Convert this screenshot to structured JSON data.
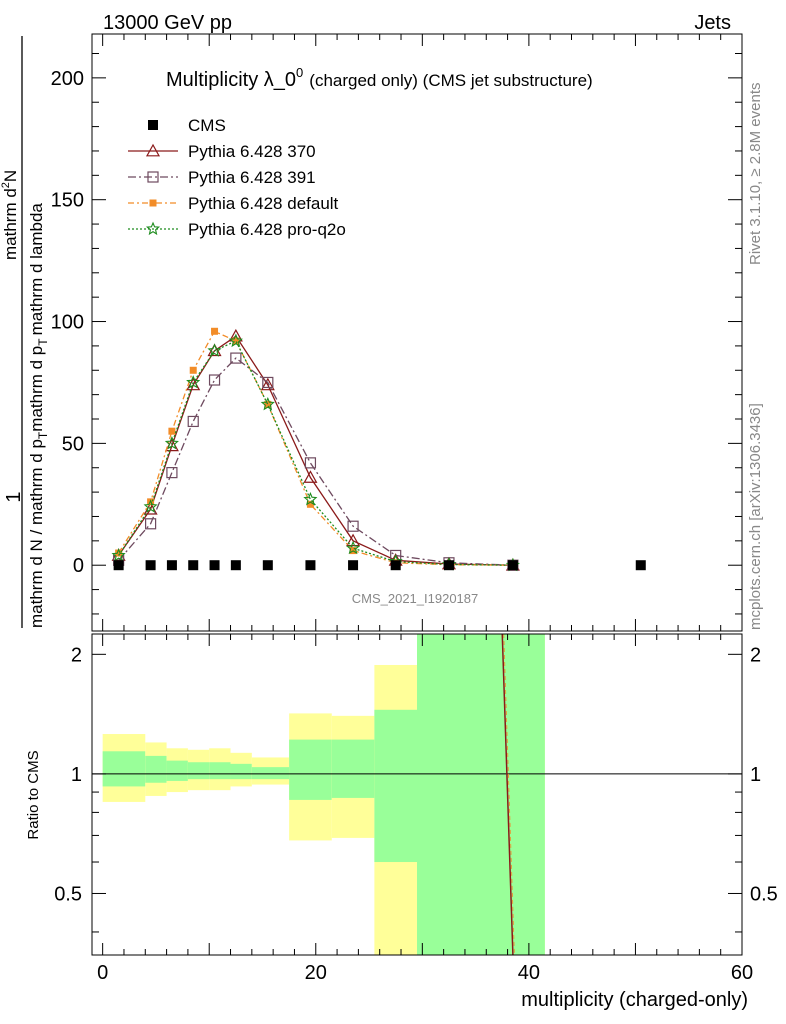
{
  "header": {
    "left": "13000 GeV pp",
    "right": "Jets"
  },
  "side": {
    "rivet": "Rivet 3.1.10, ≥ 2.8M events",
    "mcplots": "mcplots.cern.ch [arXiv:1306.3436]"
  },
  "watermark": "CMS_2021_I1920187",
  "chart_data": [
    {
      "type": "line",
      "title_main": "Multiplicity λ_0",
      "title_sup": "0",
      "title_rest": "(charged only) (CMS jet substructure)",
      "ylabel_num": "1",
      "ylabel_den": "mathrm d N / mathrm d p",
      "ylabel_den2": "mathrm d",
      "ylabel_top": "mathrm d",
      "ylabel_topN": "N",
      "ylabel_top2": "mathrm d p",
      "ylabel_top3": "mathrm d lambda",
      "ylabel_T": "T",
      "ylabel_T2": "T",
      "ylabel_exp": "2",
      "xlim": [
        -1,
        60
      ],
      "ylim": [
        -27,
        218
      ],
      "yticks": [
        0,
        50,
        100,
        150,
        200
      ],
      "ytick_labels": [
        "0",
        "50",
        "100",
        "150",
        "200"
      ],
      "series": [
        {
          "name": "CMS",
          "color": "#000000",
          "marker": "filled-square",
          "x": [
            1.5,
            4.5,
            6.5,
            8.5,
            10.5,
            12.5,
            15.5,
            19.5,
            23.5,
            27.5,
            32.5,
            38.5,
            50.5
          ],
          "y": [
            0,
            0,
            0,
            0,
            0,
            0,
            0,
            0,
            0,
            0,
            0,
            0,
            0
          ]
        },
        {
          "name": "Pythia 6.428 370",
          "color": "#8b1a1a",
          "marker": "triangle",
          "dash": "",
          "x": [
            1.5,
            4.5,
            6.5,
            8.5,
            10.5,
            12.5,
            15.5,
            19.5,
            23.5,
            27.5,
            32.5,
            38.5
          ],
          "y": [
            4,
            23,
            49,
            74,
            88,
            94,
            74,
            36,
            10,
            2,
            0.5,
            0
          ]
        },
        {
          "name": "Pythia 6.428 391",
          "color": "#6e4a5f",
          "marker": "open-square",
          "dash": "8,3,2,3",
          "x": [
            1.5,
            4.5,
            6.5,
            8.5,
            10.5,
            12.5,
            15.5,
            19.5,
            23.5,
            27.5,
            32.5,
            38.5
          ],
          "y": [
            2,
            17,
            38,
            59,
            76,
            85,
            75,
            42,
            16,
            4,
            1,
            0
          ]
        },
        {
          "name": "Pythia 6.428 default",
          "color": "#f28c28",
          "marker": "small-filled-square",
          "dash": "6,3,2,3",
          "x": [
            1.5,
            4.5,
            6.5,
            8.5,
            10.5,
            12.5,
            15.5,
            19.5,
            23.5,
            27.5,
            32.5,
            38.5
          ],
          "y": [
            5,
            26,
            55,
            80,
            96,
            92,
            66,
            25,
            6,
            1,
            0.2,
            0
          ]
        },
        {
          "name": "Pythia 6.428 pro-q2o",
          "color": "#1e8c1e",
          "marker": "star",
          "dash": "2,2",
          "x": [
            1.5,
            4.5,
            6.5,
            8.5,
            10.5,
            12.5,
            15.5,
            19.5,
            23.5,
            27.5,
            32.5,
            38.5
          ],
          "y": [
            4,
            24,
            50,
            75,
            88,
            92,
            66,
            27,
            7,
            1.5,
            0.3,
            0
          ]
        }
      ]
    },
    {
      "type": "area",
      "ylabel": "Ratio to CMS",
      "xlabel": "multiplicity (charged-only)",
      "xlim": [
        -1,
        60
      ],
      "ylim": [
        0.35,
        2.25
      ],
      "xticks": [
        0,
        20,
        40,
        60
      ],
      "xtick_labels": [
        "0",
        "20",
        "40",
        "60"
      ],
      "yticks": [
        0.5,
        1,
        2
      ],
      "ytick_labels": [
        "0.5",
        "1",
        "2"
      ],
      "bins": [
        {
          "lo": 0,
          "hi": 4,
          "yellow": [
            0.85,
            1.26
          ],
          "green": [
            0.93,
            1.14
          ]
        },
        {
          "lo": 4,
          "hi": 6,
          "yellow": [
            0.88,
            1.2
          ],
          "green": [
            0.95,
            1.11
          ]
        },
        {
          "lo": 6,
          "hi": 8,
          "yellow": [
            0.9,
            1.16
          ],
          "green": [
            0.96,
            1.08
          ]
        },
        {
          "lo": 8,
          "hi": 10,
          "yellow": [
            0.91,
            1.15
          ],
          "green": [
            0.97,
            1.07
          ]
        },
        {
          "lo": 10,
          "hi": 12,
          "yellow": [
            0.91,
            1.16
          ],
          "green": [
            0.97,
            1.07
          ]
        },
        {
          "lo": 12,
          "hi": 14,
          "yellow": [
            0.93,
            1.13
          ],
          "green": [
            0.97,
            1.06
          ]
        },
        {
          "lo": 14,
          "hi": 17.5,
          "yellow": [
            0.94,
            1.1
          ],
          "green": [
            0.97,
            1.04
          ]
        },
        {
          "lo": 17.5,
          "hi": 21.5,
          "yellow": [
            0.68,
            1.42
          ],
          "green": [
            0.86,
            1.22
          ]
        },
        {
          "lo": 21.5,
          "hi": 25.5,
          "yellow": [
            0.69,
            1.4
          ],
          "green": [
            0.87,
            1.22
          ]
        },
        {
          "lo": 25.5,
          "hi": 29.5,
          "yellow": [
            0.0,
            1.88
          ],
          "green": [
            0.6,
            1.45
          ]
        },
        {
          "lo": 29.5,
          "hi": 41.5,
          "yellow": [
            0.0,
            3.0
          ],
          "green": [
            0.0,
            3.0
          ]
        }
      ],
      "ratio_line": {
        "x": [
          37.5,
          38.5
        ],
        "y": [
          2.25,
          0.35
        ],
        "color": "#8b1a1a"
      }
    }
  ]
}
